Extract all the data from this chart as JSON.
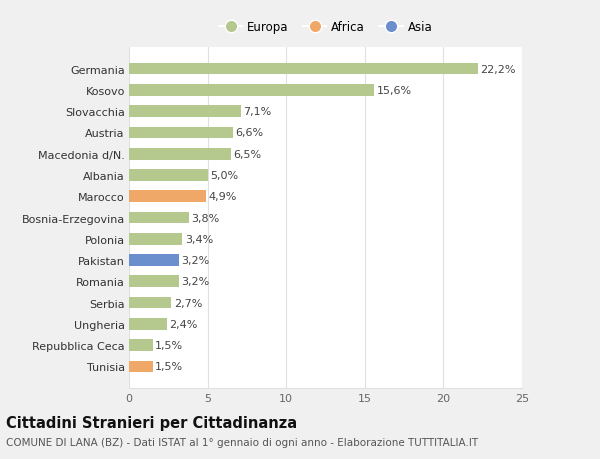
{
  "categories": [
    "Germania",
    "Kosovo",
    "Slovacchia",
    "Austria",
    "Macedonia d/N.",
    "Albania",
    "Marocco",
    "Bosnia-Erzegovina",
    "Polonia",
    "Pakistan",
    "Romania",
    "Serbia",
    "Ungheria",
    "Repubblica Ceca",
    "Tunisia"
  ],
  "values": [
    22.2,
    15.6,
    7.1,
    6.6,
    6.5,
    5.0,
    4.9,
    3.8,
    3.4,
    3.2,
    3.2,
    2.7,
    2.4,
    1.5,
    1.5
  ],
  "labels": [
    "22,2%",
    "15,6%",
    "7,1%",
    "6,6%",
    "6,5%",
    "5,0%",
    "4,9%",
    "3,8%",
    "3,4%",
    "3,2%",
    "3,2%",
    "2,7%",
    "2,4%",
    "1,5%",
    "1,5%"
  ],
  "continent": [
    "Europa",
    "Europa",
    "Europa",
    "Europa",
    "Europa",
    "Europa",
    "Africa",
    "Europa",
    "Europa",
    "Asia",
    "Europa",
    "Europa",
    "Europa",
    "Europa",
    "Africa"
  ],
  "color_europa": "#b5c98e",
  "color_africa": "#f0a868",
  "color_asia": "#6b8fcc",
  "background_color": "#f0f0f0",
  "bar_background": "#ffffff",
  "grid_color": "#e0e0e0",
  "title": "Cittadini Stranieri per Cittadinanza",
  "subtitle": "COMUNE DI LANA (BZ) - Dati ISTAT al 1° gennaio di ogni anno - Elaborazione TUTTITALIA.IT",
  "legend_europa": "Europa",
  "legend_africa": "Africa",
  "legend_asia": "Asia",
  "xlim": [
    0,
    25
  ],
  "xticks": [
    0,
    5,
    10,
    15,
    20,
    25
  ],
  "label_fontsize": 8,
  "tick_fontsize": 8,
  "title_fontsize": 10.5,
  "subtitle_fontsize": 7.5
}
